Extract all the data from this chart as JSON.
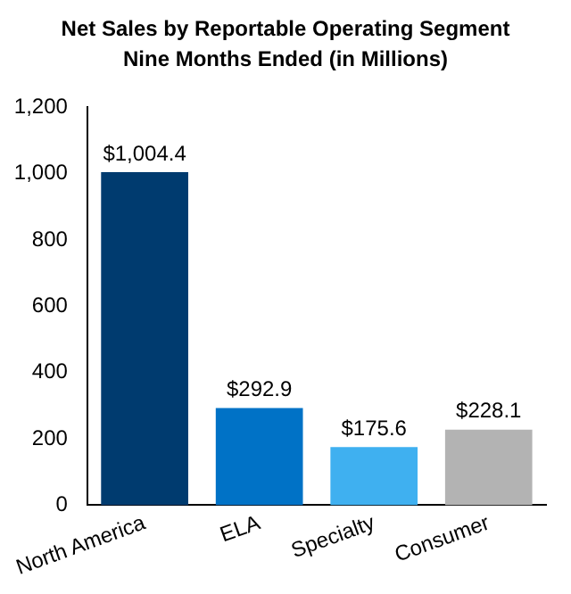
{
  "chart_data": {
    "type": "bar",
    "title": "Net Sales by Reportable Operating Segment",
    "subtitle": "Nine Months Ended (in Millions)",
    "categories": [
      "North America",
      "ELA",
      "Specialty",
      "Consumer"
    ],
    "values": [
      1004.4,
      292.9,
      175.6,
      228.1
    ],
    "colors": [
      "#003b6f",
      "#0072c6",
      "#3fb0f0",
      "#b3b3b3"
    ],
    "value_labels": [
      "$1,004.4",
      "$292.9",
      "$175.6",
      "$228.1"
    ],
    "ylim": [
      0,
      1200
    ],
    "yticks": [
      0,
      200,
      400,
      600,
      800,
      {
        "value": 1000,
        "label": "1,000"
      },
      {
        "value": 1200,
        "label": "1,200"
      }
    ],
    "grid": false,
    "legend": false
  }
}
